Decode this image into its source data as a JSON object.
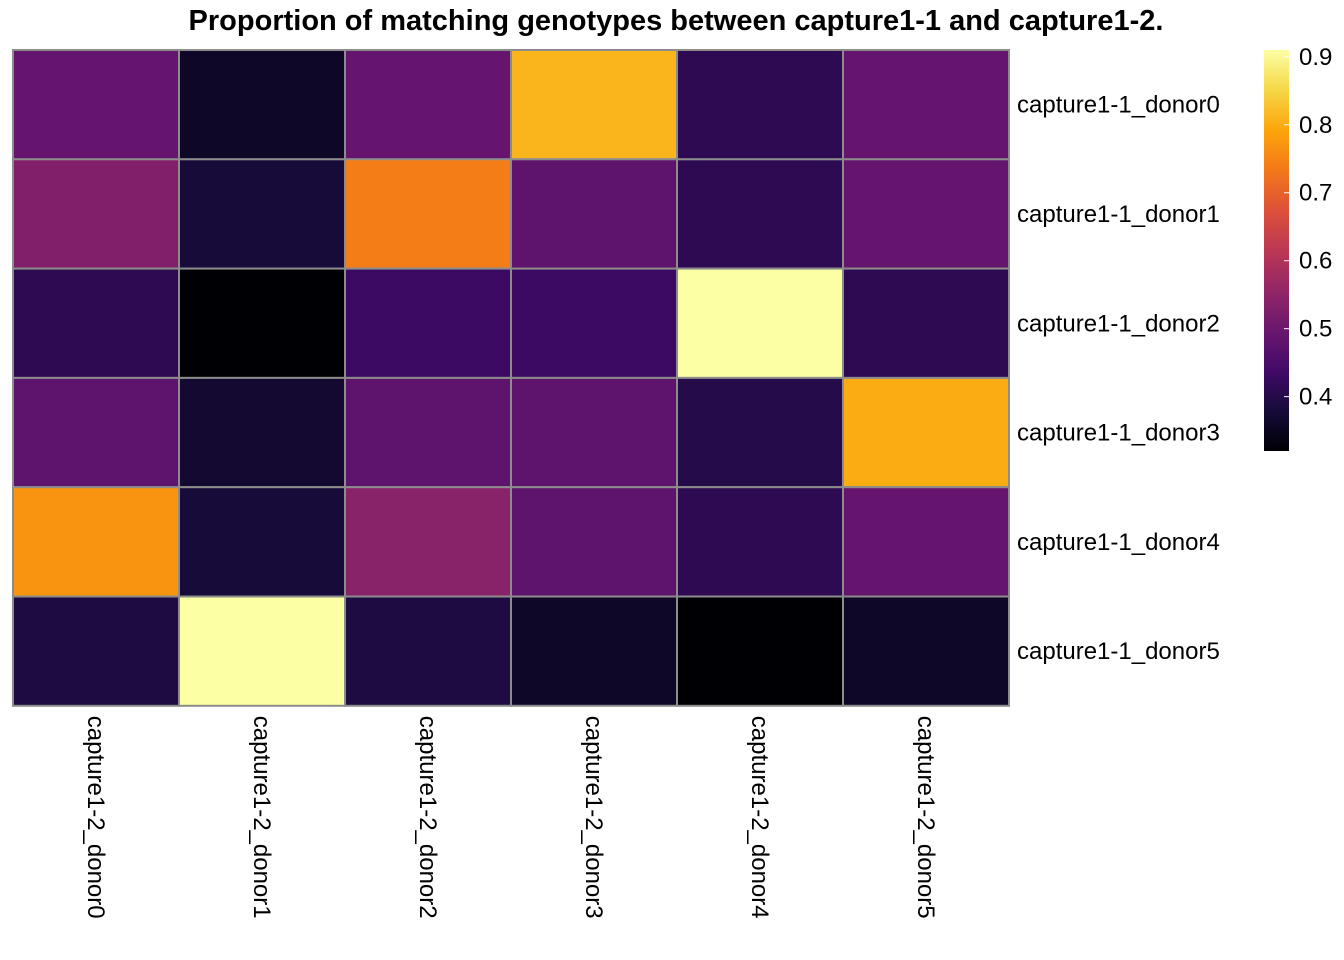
{
  "chart_data": {
    "type": "heatmap",
    "title": "Proportion of matching genotypes between capture1-1 and capture1-2.",
    "rows": [
      "capture1-1_donor0",
      "capture1-1_donor1",
      "capture1-1_donor2",
      "capture1-1_donor3",
      "capture1-1_donor4",
      "capture1-1_donor5"
    ],
    "columns": [
      "capture1-2_donor0",
      "capture1-2_donor1",
      "capture1-2_donor2",
      "capture1-2_donor3",
      "capture1-2_donor4",
      "capture1-2_donor5"
    ],
    "values": [
      [
        0.49,
        0.36,
        0.49,
        0.81,
        0.41,
        0.49
      ],
      [
        0.53,
        0.38,
        0.74,
        0.48,
        0.41,
        0.49
      ],
      [
        0.41,
        0.32,
        0.43,
        0.43,
        0.91,
        0.41
      ],
      [
        0.48,
        0.37,
        0.48,
        0.48,
        0.4,
        0.8
      ],
      [
        0.77,
        0.38,
        0.54,
        0.48,
        0.41,
        0.49
      ],
      [
        0.39,
        0.94,
        0.39,
        0.36,
        0.32,
        0.36
      ]
    ],
    "colorbar": {
      "ticks": [
        0.4,
        0.5,
        0.6,
        0.7,
        0.8,
        0.9
      ],
      "tick_labels": [
        "0.4",
        "0.5",
        "0.6",
        "0.7",
        "0.8",
        "0.9"
      ],
      "min": 0.32,
      "max": 0.91,
      "colormap": "inferno"
    },
    "cell_border_color": "#8c8c8c",
    "legend_position": "right"
  }
}
